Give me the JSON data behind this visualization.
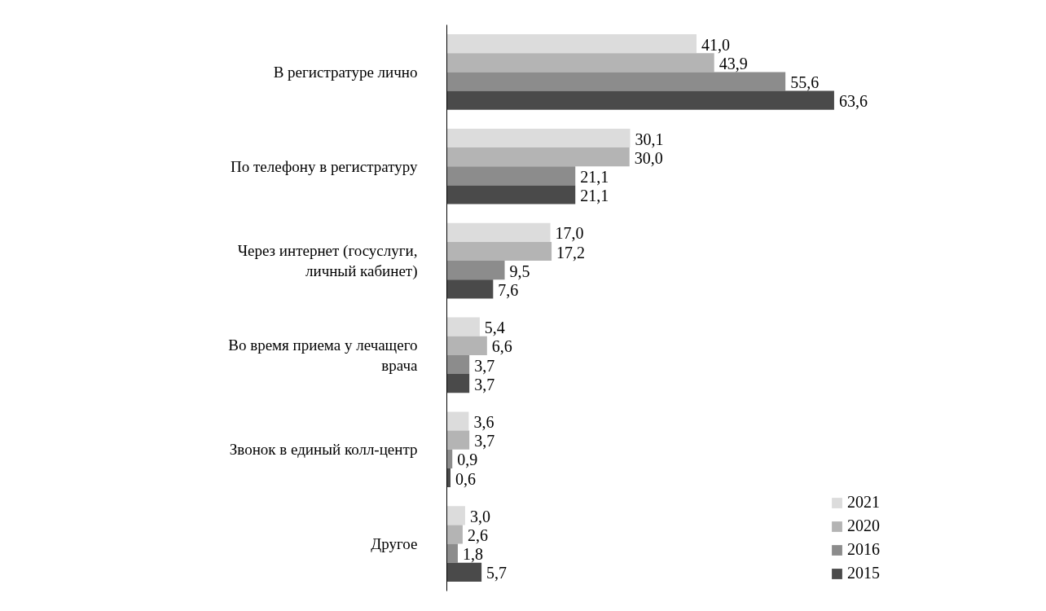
{
  "chart_data": {
    "type": "bar",
    "orientation": "horizontal",
    "categories": [
      "В регистратуре лично",
      "По телефону в регистратуру",
      "Через интернет (госуслуги,\nличный кабинет)",
      "Во время приема у лечащего\nврача",
      "Звонок в единый колл-центр",
      "Другое"
    ],
    "series": [
      {
        "name": "2021",
        "color": "#dcdcdc",
        "values": [
          41.0,
          30.1,
          17.0,
          5.4,
          3.6,
          3.0
        ],
        "value_labels": [
          "41,0",
          "30,1",
          "17,0",
          "5,4",
          "3,6",
          "3,0"
        ]
      },
      {
        "name": "2020",
        "color": "#b4b4b4",
        "values": [
          43.9,
          30.0,
          17.2,
          6.6,
          3.7,
          2.6
        ],
        "value_labels": [
          "43,9",
          "30,0",
          "17,2",
          "6,6",
          "3,7",
          "2,6"
        ]
      },
      {
        "name": "2016",
        "color": "#8c8c8c",
        "values": [
          55.6,
          21.1,
          9.5,
          3.7,
          0.9,
          1.8
        ],
        "value_labels": [
          "55,6",
          "21,1",
          "9,5",
          "3,7",
          "0,9",
          "1,8"
        ]
      },
      {
        "name": "2015",
        "color": "#4a4a4a",
        "values": [
          63.6,
          21.1,
          7.6,
          3.7,
          0.6,
          5.7
        ],
        "value_labels": [
          "63,6",
          "21,1",
          "7,6",
          "3,7",
          "0,6",
          "5,7"
        ]
      }
    ],
    "legend": "bottom right",
    "grid": false,
    "tick_labels": "y"
  }
}
